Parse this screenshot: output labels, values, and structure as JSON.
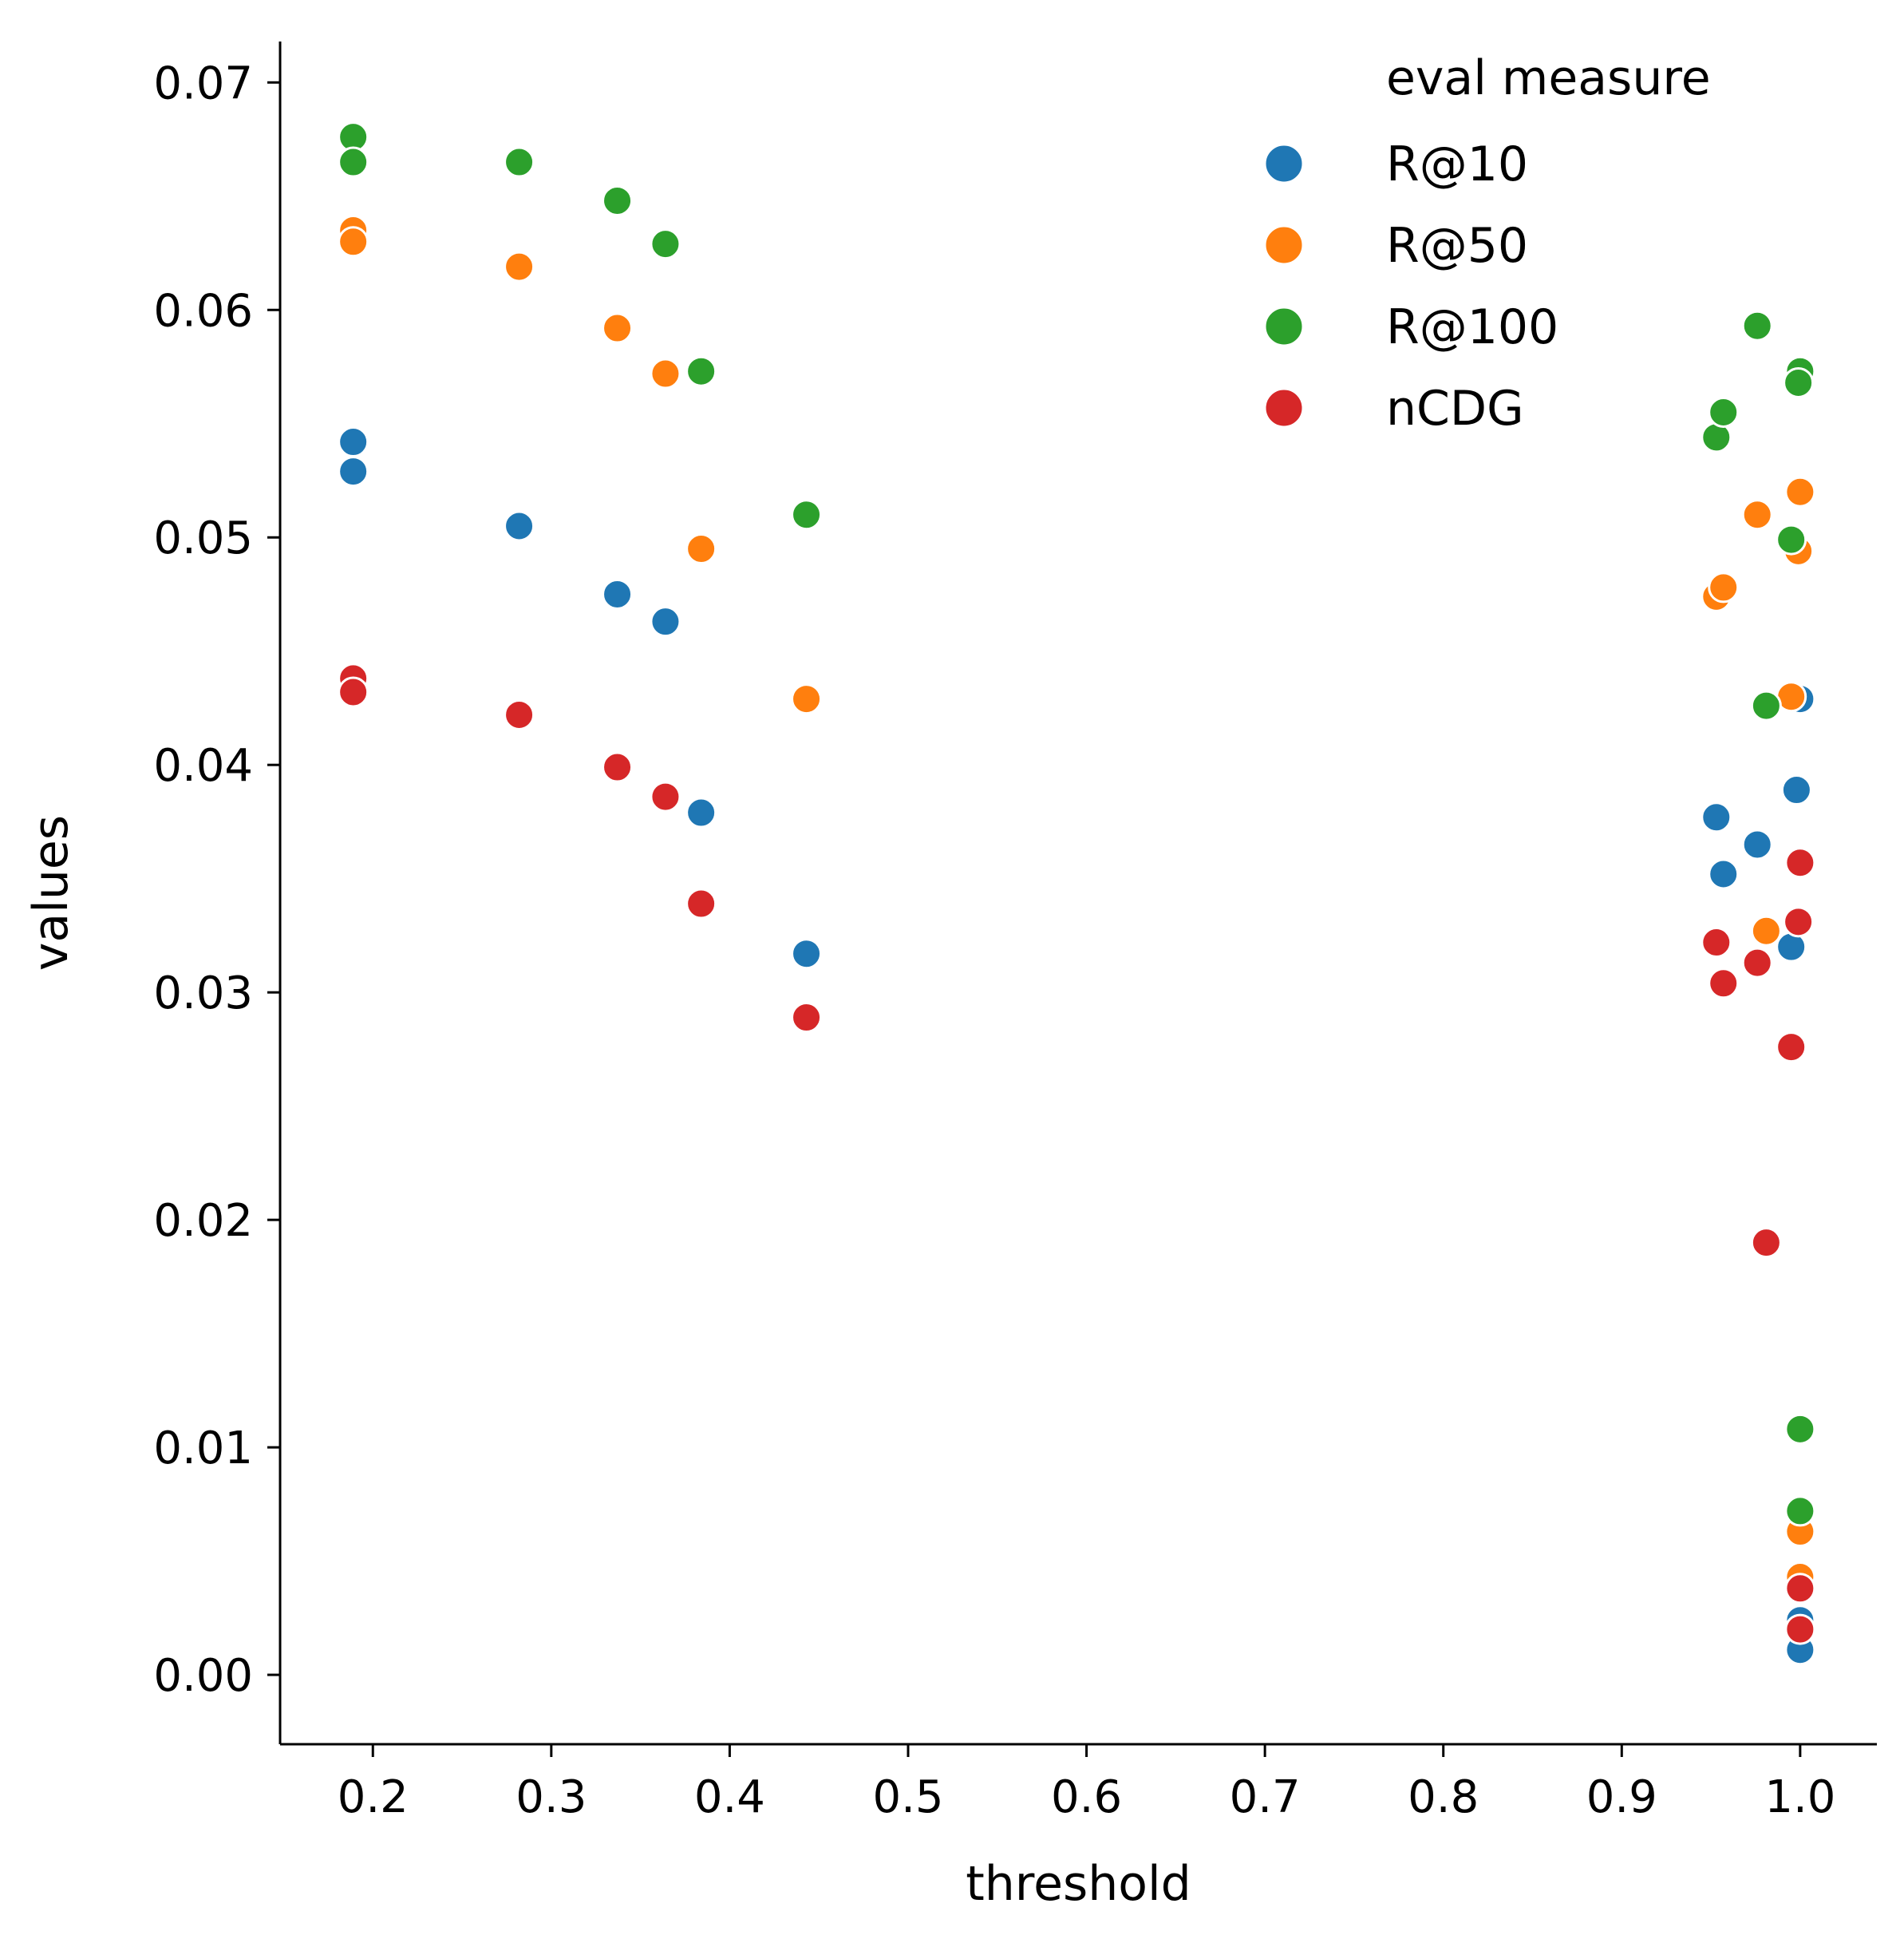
{
  "chart_data": {
    "type": "scatter",
    "title": "",
    "xlabel": "threshold",
    "ylabel": "values",
    "xlim": [
      0.148,
      1.043
    ],
    "ylim": [
      -0.00305,
      0.0718
    ],
    "xticks": [
      0.2,
      0.3,
      0.4,
      0.5,
      0.6,
      0.7,
      0.8,
      0.9,
      1.0
    ],
    "xtick_labels": [
      "0.2",
      "0.3",
      "0.4",
      "0.5",
      "0.6",
      "0.7",
      "0.8",
      "0.9",
      "1.0"
    ],
    "yticks": [
      0.0,
      0.01,
      0.02,
      0.03,
      0.04,
      0.05,
      0.06,
      0.07
    ],
    "ytick_labels": [
      "0.00",
      "0.01",
      "0.02",
      "0.03",
      "0.04",
      "0.05",
      "0.06",
      "0.07"
    ],
    "grid": false,
    "legend": {
      "title": "eval measure",
      "position": "top-right"
    },
    "series": [
      {
        "name": "R@10",
        "color": "#1f77b4",
        "points": [
          [
            0.189,
            0.0542
          ],
          [
            0.189,
            0.0529
          ],
          [
            0.282,
            0.0505
          ],
          [
            0.337,
            0.0475
          ],
          [
            0.364,
            0.0463
          ],
          [
            0.384,
            0.0379
          ],
          [
            0.443,
            0.0317
          ],
          [
            0.953,
            0.0377
          ],
          [
            0.957,
            0.0352
          ],
          [
            0.976,
            0.0365
          ],
          [
            0.995,
            0.032
          ],
          [
            0.998,
            0.0389
          ],
          [
            1.0,
            0.0429
          ],
          [
            1.0,
            0.0024
          ],
          [
            1.0,
            0.0011
          ]
        ]
      },
      {
        "name": "R@50",
        "color": "#ff7f0e",
        "points": [
          [
            0.189,
            0.0635
          ],
          [
            0.189,
            0.063
          ],
          [
            0.282,
            0.0619
          ],
          [
            0.337,
            0.0592
          ],
          [
            0.364,
            0.0572
          ],
          [
            0.384,
            0.0495
          ],
          [
            0.443,
            0.0429
          ],
          [
            0.953,
            0.0474
          ],
          [
            0.957,
            0.0478
          ],
          [
            0.976,
            0.051
          ],
          [
            0.981,
            0.0327
          ],
          [
            0.995,
            0.043
          ],
          [
            0.999,
            0.0494
          ],
          [
            1.0,
            0.052
          ],
          [
            1.0,
            0.0063
          ],
          [
            1.0,
            0.0043
          ]
        ]
      },
      {
        "name": "R@100",
        "color": "#2ca02c",
        "points": [
          [
            0.189,
            0.0676
          ],
          [
            0.189,
            0.0665
          ],
          [
            0.282,
            0.0665
          ],
          [
            0.337,
            0.0648
          ],
          [
            0.364,
            0.0629
          ],
          [
            0.384,
            0.0573
          ],
          [
            0.443,
            0.051
          ],
          [
            0.953,
            0.0544
          ],
          [
            0.957,
            0.0555
          ],
          [
            0.976,
            0.0593
          ],
          [
            0.981,
            0.0426
          ],
          [
            0.995,
            0.0499
          ],
          [
            1.0,
            0.0573
          ],
          [
            0.999,
            0.0568
          ],
          [
            1.0,
            0.0108
          ],
          [
            1.0,
            0.0072
          ]
        ]
      },
      {
        "name": "nCDG",
        "color": "#d62728",
        "points": [
          [
            0.189,
            0.0438
          ],
          [
            0.189,
            0.0432
          ],
          [
            0.282,
            0.0422
          ],
          [
            0.337,
            0.0399
          ],
          [
            0.364,
            0.0386
          ],
          [
            0.384,
            0.0339
          ],
          [
            0.443,
            0.0289
          ],
          [
            0.953,
            0.0322
          ],
          [
            0.957,
            0.0304
          ],
          [
            0.976,
            0.0313
          ],
          [
            0.981,
            0.019
          ],
          [
            0.995,
            0.0276
          ],
          [
            1.0,
            0.0357
          ],
          [
            0.999,
            0.0331
          ],
          [
            1.0,
            0.0038
          ],
          [
            1.0,
            0.002
          ]
        ]
      }
    ]
  }
}
